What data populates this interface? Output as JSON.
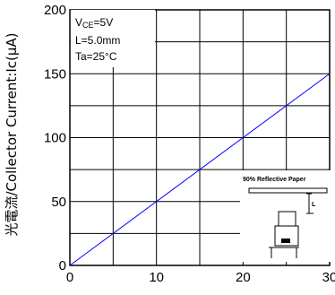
{
  "chart_data": {
    "type": "line",
    "xlabel": "",
    "ylabel": "光電流/Collector Current:Ic(μA)",
    "xlim": [
      0,
      30
    ],
    "ylim": [
      0,
      200
    ],
    "x_ticks": [
      "0",
      "10",
      "20",
      "30"
    ],
    "y_ticks": [
      "0",
      "50",
      "100",
      "150",
      "200"
    ],
    "grid": true,
    "series": [
      {
        "x": [
          0,
          30
        ],
        "y": [
          0,
          150
        ],
        "color": "#0000ff"
      }
    ],
    "conditions": {
      "vce_main": "V",
      "vce_sub": "CE",
      "vce_value": "=5V",
      "distance": "L=5.0mm",
      "temperature": "Ta=25°C"
    },
    "inset": {
      "label": "90% Reflective Paper"
    }
  }
}
